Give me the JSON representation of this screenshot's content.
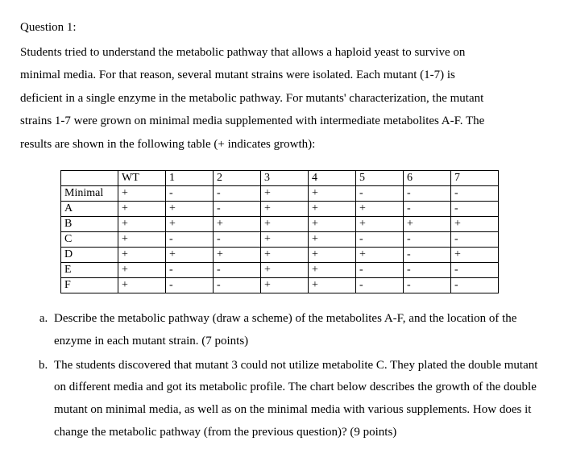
{
  "heading": "Question 1:",
  "intro_lines": [
    "Students tried to understand the metabolic pathway that allows a haploid yeast to survive on",
    "minimal media. For that reason, several mutant strains were isolated. Each mutant (1-7) is",
    "deficient in a single enzyme in the metabolic pathway. For mutants' characterization, the mutant",
    "strains 1-7 were grown on minimal media supplemented with intermediate metabolites A-F. The",
    "results are shown in the following table (+ indicates growth):"
  ],
  "table": {
    "header": [
      "",
      "WT",
      "1",
      "2",
      "3",
      "4",
      "5",
      "6",
      "7"
    ],
    "rows": [
      [
        "Minimal",
        "+",
        "-",
        "-",
        "+",
        "+",
        "-",
        "-",
        "-"
      ],
      [
        "A",
        "+",
        "+",
        "-",
        "+",
        "+",
        "+",
        "-",
        "-"
      ],
      [
        "B",
        "+",
        "+",
        "+",
        "+",
        "+",
        "+",
        "+",
        "+"
      ],
      [
        "C",
        "+",
        "-",
        "-",
        "+",
        "+",
        "-",
        "-",
        "-"
      ],
      [
        "D",
        "+",
        "+",
        "+",
        "+",
        "+",
        "+",
        "-",
        "+"
      ],
      [
        "E",
        "+",
        "-",
        "-",
        "+",
        "+",
        "-",
        "-",
        "-"
      ],
      [
        "F",
        "+",
        "-",
        "-",
        "+",
        "+",
        "-",
        "-",
        "-"
      ]
    ]
  },
  "parts": {
    "a": "Describe the metabolic pathway (draw a scheme) of the metabolites A-F, and the location of the enzyme in each mutant strain. (7 points)",
    "b": "The students discovered that mutant 3 could not utilize metabolite C. They plated the double mutant on different media and got its metabolic profile. The chart below describes the growth of the double mutant on minimal media, as well as on the minimal media with various supplements. How does it change the metabolic pathway (from the previous question)? (9 points)"
  }
}
